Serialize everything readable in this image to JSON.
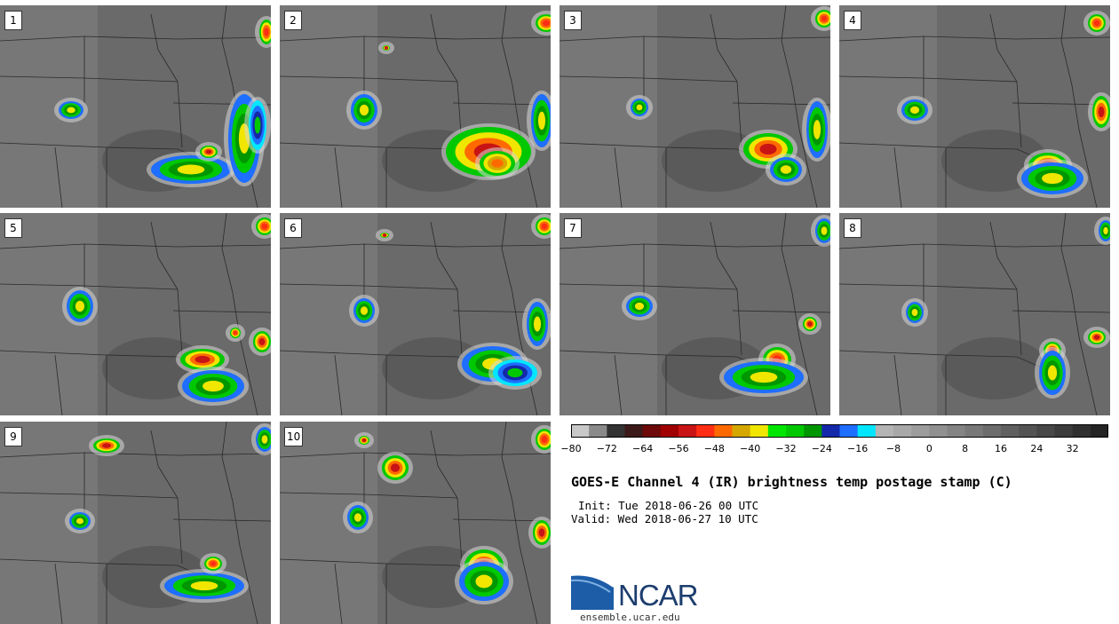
{
  "panels": [
    {
      "label": "1",
      "storms": [
        [
          80,
          118,
          14,
          10,
          "green"
        ],
        [
          215,
          185,
          45,
          16,
          "green"
        ],
        [
          235,
          165,
          10,
          7,
          "red"
        ],
        [
          275,
          150,
          18,
          50,
          "green"
        ],
        [
          290,
          135,
          10,
          28,
          "blue"
        ],
        [
          300,
          30,
          8,
          14,
          "orange"
        ]
      ]
    },
    {
      "label": "2",
      "storms": [
        [
          95,
          118,
          15,
          18,
          "green"
        ],
        [
          235,
          165,
          48,
          28,
          "red"
        ],
        [
          245,
          178,
          20,
          14,
          "yellow"
        ],
        [
          295,
          130,
          12,
          30,
          "green"
        ],
        [
          300,
          20,
          12,
          10,
          "orange"
        ],
        [
          120,
          48,
          4,
          3,
          "red"
        ]
      ]
    },
    {
      "label": "3",
      "storms": [
        [
          90,
          115,
          10,
          10,
          "green"
        ],
        [
          235,
          162,
          28,
          18,
          "red"
        ],
        [
          255,
          185,
          18,
          14,
          "green"
        ],
        [
          290,
          140,
          12,
          32,
          "green"
        ],
        [
          298,
          15,
          10,
          10,
          "orange"
        ]
      ]
    },
    {
      "label": "4",
      "storms": [
        [
          85,
          118,
          15,
          12,
          "green"
        ],
        [
          235,
          180,
          22,
          14,
          "red"
        ],
        [
          240,
          195,
          35,
          18,
          "green"
        ],
        [
          295,
          120,
          10,
          18,
          "red"
        ],
        [
          290,
          20,
          10,
          10,
          "orange"
        ]
      ]
    },
    {
      "label": "5",
      "storms": [
        [
          90,
          105,
          15,
          18,
          "green"
        ],
        [
          228,
          165,
          25,
          12,
          "red"
        ],
        [
          240,
          195,
          35,
          18,
          "green"
        ],
        [
          295,
          145,
          10,
          12,
          "red"
        ],
        [
          298,
          15,
          10,
          10,
          "orange"
        ],
        [
          265,
          135,
          6,
          6,
          "orange"
        ]
      ]
    },
    {
      "label": "6",
      "storms": [
        [
          95,
          110,
          12,
          14,
          "green"
        ],
        [
          240,
          170,
          35,
          20,
          "green"
        ],
        [
          265,
          180,
          25,
          15,
          "blue"
        ],
        [
          290,
          125,
          12,
          25,
          "green"
        ],
        [
          298,
          15,
          10,
          10,
          "orange"
        ],
        [
          118,
          25,
          5,
          3,
          "red"
        ]
      ]
    },
    {
      "label": "7",
      "storms": [
        [
          90,
          105,
          15,
          12,
          "green"
        ],
        [
          245,
          165,
          16,
          14,
          "orange"
        ],
        [
          230,
          185,
          45,
          18,
          "green"
        ],
        [
          282,
          125,
          8,
          8,
          "red"
        ],
        [
          298,
          20,
          10,
          14,
          "green"
        ]
      ]
    },
    {
      "label": "8",
      "storms": [
        [
          85,
          112,
          10,
          12,
          "green"
        ],
        [
          240,
          155,
          10,
          10,
          "red"
        ],
        [
          240,
          180,
          15,
          25,
          "green"
        ],
        [
          290,
          140,
          10,
          8,
          "red"
        ],
        [
          300,
          20,
          8,
          12,
          "green"
        ]
      ]
    },
    {
      "label": "9",
      "storms": [
        [
          120,
          27,
          15,
          8,
          "red"
        ],
        [
          90,
          112,
          12,
          10,
          "green"
        ],
        [
          230,
          185,
          45,
          15,
          "green"
        ],
        [
          240,
          160,
          10,
          8,
          "orange"
        ],
        [
          298,
          20,
          10,
          14,
          "green"
        ]
      ]
    },
    {
      "label": "10",
      "storms": [
        [
          130,
          52,
          15,
          14,
          "red"
        ],
        [
          95,
          21,
          6,
          5,
          "red"
        ],
        [
          88,
          108,
          12,
          14,
          "green"
        ],
        [
          230,
          162,
          22,
          18,
          "red"
        ],
        [
          230,
          180,
          28,
          22,
          "green"
        ],
        [
          295,
          125,
          10,
          14,
          "red"
        ],
        [
          298,
          20,
          10,
          12,
          "orange"
        ]
      ]
    }
  ],
  "colorbar": {
    "colors": [
      "#c8c8c8",
      "#8a8a8a",
      "#333333",
      "#3d1a1a",
      "#6e0a0a",
      "#a00000",
      "#c81414",
      "#ff2e14",
      "#ff6a00",
      "#d4a800",
      "#f0e600",
      "#00e600",
      "#00c800",
      "#009600",
      "#1428aa",
      "#1e6eff",
      "#00e6ff",
      "#b4b4b4",
      "#a8a8a8",
      "#9c9c9c",
      "#909090",
      "#848484",
      "#787878",
      "#6c6c6c",
      "#606060",
      "#545454",
      "#484848",
      "#3c3c3c",
      "#303030",
      "#242424"
    ],
    "tick_labels": [
      "−80",
      "−72",
      "−64",
      "−56",
      "−48",
      "−40",
      "−32",
      "−24",
      "−16",
      "−8",
      "0",
      "8",
      "16",
      "24",
      "32"
    ],
    "range": [
      -80,
      40
    ]
  },
  "title": "GOES-E Channel 4 (IR) brightness temp postage stamp (C)",
  "init_line": "Init: Tue 2018-06-26 00 UTC",
  "valid_line": "Valid: Wed 2018-06-27 10 UTC",
  "logo_text": "NCAR",
  "site": "ensemble.ucar.edu"
}
